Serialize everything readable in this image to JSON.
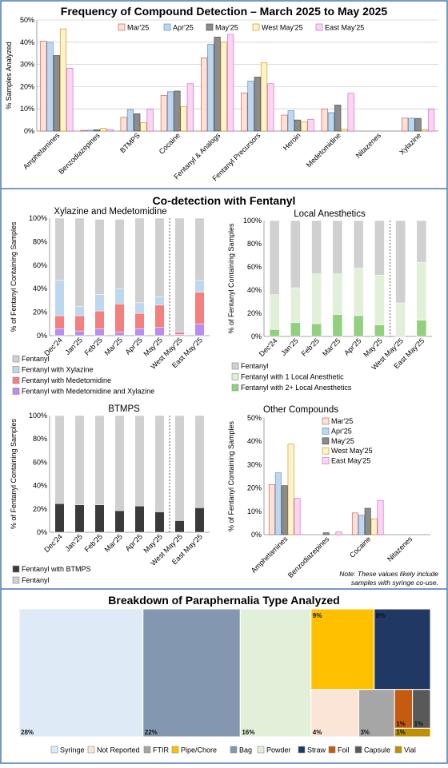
{
  "colors": {
    "border": "#4a78b0",
    "grid": "#d0d0d0",
    "series5": [
      "#fbe2d5",
      "#bdd7ee",
      "#8c8c8c",
      "#fff2cc",
      "#fcd5f4"
    ],
    "series5_stroke": [
      "#c0504d",
      "#4f81bd",
      "#404040",
      "#bf9000",
      "#c060c0"
    ],
    "fentanyl": "#d0d0d0",
    "xylazine": "#bdd7ee",
    "medetomidine": "#f47f7f",
    "med_xyl": "#b98cf0",
    "la_one": "#e2f0d9",
    "la_two": "#92d080",
    "btmps": "#3a3a3a"
  },
  "charts": [
    {
      "id": "frequency",
      "type": "bar",
      "title": "Frequency of Compound Detection – March 2025 to May 2025",
      "ylabel": "% Samples Analyzed",
      "ylim": [
        0,
        50
      ],
      "yticks": [
        0,
        10,
        20,
        30,
        40,
        50
      ],
      "ytick_labels": [
        "0%",
        "10%",
        "20%",
        "30%",
        "40%",
        "50%"
      ],
      "categories": [
        "Amphetamines",
        "Benzodiazepines",
        "BTMPS",
        "Cocaine",
        "Fentanyl & Analogs",
        "Fentanyl Precursors",
        "Heroin",
        "Medetomidine",
        "Nitazenes",
        "Xylazine"
      ],
      "series": [
        {
          "name": "Mar'25",
          "values": [
            40.5,
            0.3,
            6.2,
            16.0,
            33.0,
            17.2,
            7.2,
            10.0,
            0,
            5.8
          ]
        },
        {
          "name": "Apr'25",
          "values": [
            40.0,
            0.4,
            9.7,
            17.7,
            39.0,
            22.5,
            9.2,
            8.3,
            0,
            5.8
          ]
        },
        {
          "name": "May'25",
          "values": [
            34.0,
            0.6,
            7.8,
            18.0,
            42.3,
            24.3,
            5.0,
            11.7,
            0,
            5.7
          ]
        },
        {
          "name": "West May'25",
          "values": [
            46.0,
            1.2,
            3.8,
            11.0,
            40.0,
            30.8,
            4.2,
            0.8,
            0,
            0.5
          ]
        },
        {
          "name": "East May'25",
          "values": [
            28.3,
            0.7,
            9.8,
            21.3,
            43.5,
            21.3,
            5.3,
            17.0,
            0,
            9.8
          ]
        }
      ]
    },
    {
      "id": "xyl_med",
      "type": "bar",
      "stacked": true,
      "title": "Xylazine and Medetomidine",
      "ylabel": "% of Fentanyl Containing Samples",
      "ylim": [
        0,
        100
      ],
      "yticks": [
        0,
        20,
        40,
        60,
        80,
        100
      ],
      "ytick_labels": [
        "0%",
        "20%",
        "40%",
        "60%",
        "80%",
        "100%"
      ],
      "categories": [
        "Dec'24",
        "Jan'25",
        "Feb'25",
        "Mar'25",
        "Apr'25",
        "May'25",
        "West May'25",
        "East May'25"
      ],
      "divider_after": 5,
      "series": [
        {
          "name": "Fentanyl",
          "values": [
            53,
            75,
            64,
            59,
            72,
            67,
            97,
            53
          ]
        },
        {
          "name": "Fentanyl with Xylazine",
          "values": [
            30,
            8,
            14,
            13,
            9,
            7,
            0,
            10
          ]
        },
        {
          "name": "Fentanyl with Medetomidine",
          "values": [
            11,
            13,
            15,
            24,
            13,
            19,
            2,
            27
          ]
        },
        {
          "name": "Fentanyl with Medetomidine and Xylazine",
          "values": [
            6,
            4,
            6,
            3,
            6,
            7,
            1,
            10
          ]
        }
      ]
    },
    {
      "id": "local_anesthetics",
      "type": "bar",
      "stacked": true,
      "title": "Local Anesthetics",
      "ylabel": "% of Fentanyl Containing Samples",
      "ylim": [
        0,
        100
      ],
      "yticks": [
        0,
        20,
        40,
        60,
        80,
        100
      ],
      "ytick_labels": [
        "0%",
        "20%",
        "40%",
        "60%",
        "80%",
        "100%"
      ],
      "categories": [
        "Dec'24",
        "Jan'25",
        "Feb'25",
        "Mar'25",
        "Apr'25",
        "May'25",
        "West May'25",
        "East May'25"
      ],
      "divider_after": 5,
      "series": [
        {
          "name": "Fentanyl",
          "values": [
            64,
            58,
            46,
            46,
            41,
            47,
            71,
            36
          ]
        },
        {
          "name": "Fentanyl with 1 Local Anesthetic",
          "values": [
            30,
            30,
            43,
            35,
            41,
            43,
            29,
            50
          ]
        },
        {
          "name": "Fentanyl with 2+ Local Anesthetics",
          "values": [
            6,
            12,
            11,
            19,
            18,
            10,
            0,
            14
          ]
        }
      ]
    },
    {
      "id": "btmps",
      "type": "bar",
      "stacked": true,
      "title": "BTMPS",
      "ylabel": "% of Fentanyl Containing Samples",
      "ylim": [
        0,
        100
      ],
      "yticks": [
        0,
        20,
        40,
        60,
        80,
        100
      ],
      "ytick_labels": [
        "0%",
        "20%",
        "40%",
        "60%",
        "80%",
        "100%"
      ],
      "categories": [
        "Dec'24",
        "Jan'25",
        "Feb'25",
        "Mar'25",
        "Apr'25",
        "May'25",
        "West May'25",
        "East May'25"
      ],
      "divider_after": 5,
      "series": [
        {
          "name": "Fentanyl with BTMPS",
          "values": [
            24.5,
            23.5,
            23.5,
            18.5,
            22.5,
            17.5,
            10,
            21
          ]
        },
        {
          "name": "Fentanyl",
          "values": [
            75.5,
            76.5,
            76.5,
            81.5,
            77.5,
            82.5,
            90,
            79
          ]
        }
      ]
    },
    {
      "id": "other",
      "type": "bar",
      "title": "Other Compounds",
      "ylabel": "% of Fentanyl Containing Samples",
      "ylim": [
        0,
        50
      ],
      "yticks": [
        0,
        10,
        20,
        30,
        40,
        50
      ],
      "ytick_labels": [
        "0%",
        "10%",
        "20%",
        "30%",
        "40%",
        "50%"
      ],
      "categories": [
        "Amphetamines",
        "Benzodiazepines",
        "Cocaine",
        "Nitazenes"
      ],
      "series": [
        {
          "name": "Mar'25",
          "values": [
            21.5,
            0,
            9.3,
            0
          ]
        },
        {
          "name": "Apr'25",
          "values": [
            26.5,
            0,
            8.3,
            0
          ]
        },
        {
          "name": "May'25",
          "values": [
            21.0,
            0.8,
            11.3,
            0
          ]
        },
        {
          "name": "West May'25",
          "values": [
            38.8,
            0,
            6.8,
            0
          ]
        },
        {
          "name": "East May'25",
          "values": [
            15.5,
            1.2,
            14.7,
            0
          ]
        }
      ],
      "note": [
        "Note: These values likely include",
        "samples with syringe co-use."
      ]
    },
    {
      "id": "paraphernalia",
      "type": "treemap",
      "title": "Breakdown of Paraphernalia Type Analyzed",
      "items": [
        {
          "name": "Syringe",
          "value": 28,
          "label": "28%",
          "color": "#deebf7"
        },
        {
          "name": "Not Reported",
          "value": 4,
          "label": "4%",
          "color": "#fbe5d6"
        },
        {
          "name": "FTIR",
          "value": 3,
          "label": "3%",
          "color": "#a6a6a6"
        },
        {
          "name": "Pipe/Chore",
          "value": 9,
          "label": "9%",
          "color": "#ffc000"
        },
        {
          "name": "Bag",
          "value": 22,
          "label": "22%",
          "color": "#8497b0"
        },
        {
          "name": "Powder",
          "value": 16,
          "label": "16%",
          "color": "#e2f0d9"
        },
        {
          "name": "Straw",
          "value": 8,
          "label": "8%",
          "color": "#203864"
        },
        {
          "name": "Foil",
          "value": 1,
          "label": "1%",
          "color": "#c55a11"
        },
        {
          "name": "Capsule",
          "value": 1,
          "label": "1%",
          "color": "#595959"
        },
        {
          "name": "Vial",
          "value": 1,
          "label": "1%",
          "color": "#bf9000"
        }
      ]
    }
  ]
}
